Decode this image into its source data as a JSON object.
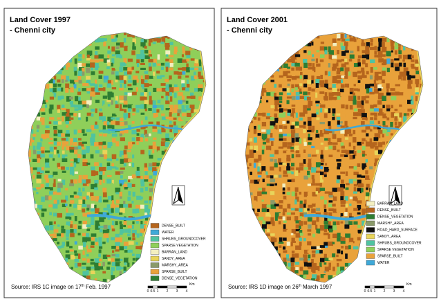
{
  "panels": [
    {
      "title": "Land Cover 1997",
      "subtitle": "- Chenni city",
      "legend": [
        {
          "label": "DENSE_BUILT",
          "color": "#b5651d"
        },
        {
          "label": "WATER",
          "color": "#3fa9d8"
        },
        {
          "label": "SHRUBS_GROUNDCOVER",
          "color": "#4fc3a0"
        },
        {
          "label": "SPARSE VEGETATION",
          "color": "#8fcf5a"
        },
        {
          "label": "BARRAN_LAND",
          "color": "#f3efc0"
        },
        {
          "label": "SANDY_AREA",
          "color": "#e8d45a"
        },
        {
          "label": "MARSHY_AREA",
          "color": "#8a9a6a"
        },
        {
          "label": "SPARSE_BUILT",
          "color": "#e9a23b"
        },
        {
          "label": "DENSE_VEGETATION",
          "color": "#2e7d32"
        }
      ],
      "source": {
        "before": "Source: IRS 1C image on 17",
        "superscript": "th",
        "after": "Feb. 1997"
      },
      "scale": {
        "ticks": [
          "0",
          "0.5",
          "1",
          "2",
          "3",
          "4"
        ],
        "unit": "Km"
      }
    },
    {
      "title": "Land Cover 2001",
      "subtitle": "- Chenni city",
      "legend": [
        {
          "label": "BARRAN_LAND",
          "color": "#f3efc0"
        },
        {
          "label": "DENSE_BUILT",
          "color": "#b5651d"
        },
        {
          "label": "DENSE_VEGETATION",
          "color": "#2e7d32"
        },
        {
          "label": "MARSHY_AREA",
          "color": "#8a9a6a"
        },
        {
          "label": "ROAD_HARD_SURFACE",
          "color": "#111111"
        },
        {
          "label": "SANDY_AREA",
          "color": "#e8d45a"
        },
        {
          "label": "SHRUBS_GROUNDCOVER",
          "color": "#4fc3a0"
        },
        {
          "label": "SPARSE VEGETATION",
          "color": "#8fcf5a"
        },
        {
          "label": "SPARSE_BUILT",
          "color": "#e9a23b"
        },
        {
          "label": "WATER",
          "color": "#3fa9d8"
        }
      ],
      "source": {
        "before": "Source: IRS 1D image on 26",
        "superscript": "th",
        "after": "March 1997"
      },
      "scale": {
        "ticks": [
          "0",
          "0.5",
          "1",
          "2",
          "3",
          "4"
        ],
        "unit": "Km"
      }
    }
  ]
}
